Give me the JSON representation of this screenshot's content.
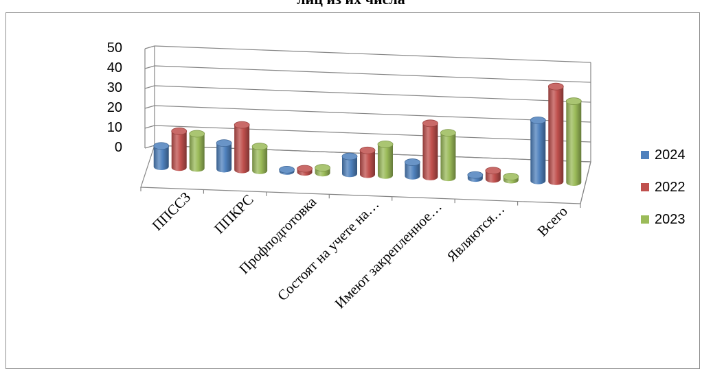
{
  "page": {
    "title_fragment": "лиц из их числа"
  },
  "chart_data": {
    "type": "bar",
    "subtype": "3d-clustered-column",
    "title": "",
    "categories": [
      "ППССЗ",
      "ППКРС",
      "Профподготовка",
      "Состоят на учете на…",
      "Имеют закрепленное…",
      "Являются…",
      "Всего"
    ],
    "series": [
      {
        "name": "2024",
        "color": "#4f81bd",
        "values": [
          12,
          15,
          1,
          10,
          8,
          2,
          35
        ]
      },
      {
        "name": "2022",
        "color": "#c0504d",
        "values": [
          21,
          26,
          2,
          14,
          31,
          5,
          55
        ]
      },
      {
        "name": "2023",
        "color": "#9bbb59",
        "values": [
          20,
          14,
          3,
          18,
          26,
          2,
          47
        ]
      }
    ],
    "yticks": [
      "0",
      "10",
      "20",
      "30",
      "40",
      "50"
    ],
    "ylim": [
      0,
      50
    ],
    "grid": true,
    "legend_position": "right"
  }
}
